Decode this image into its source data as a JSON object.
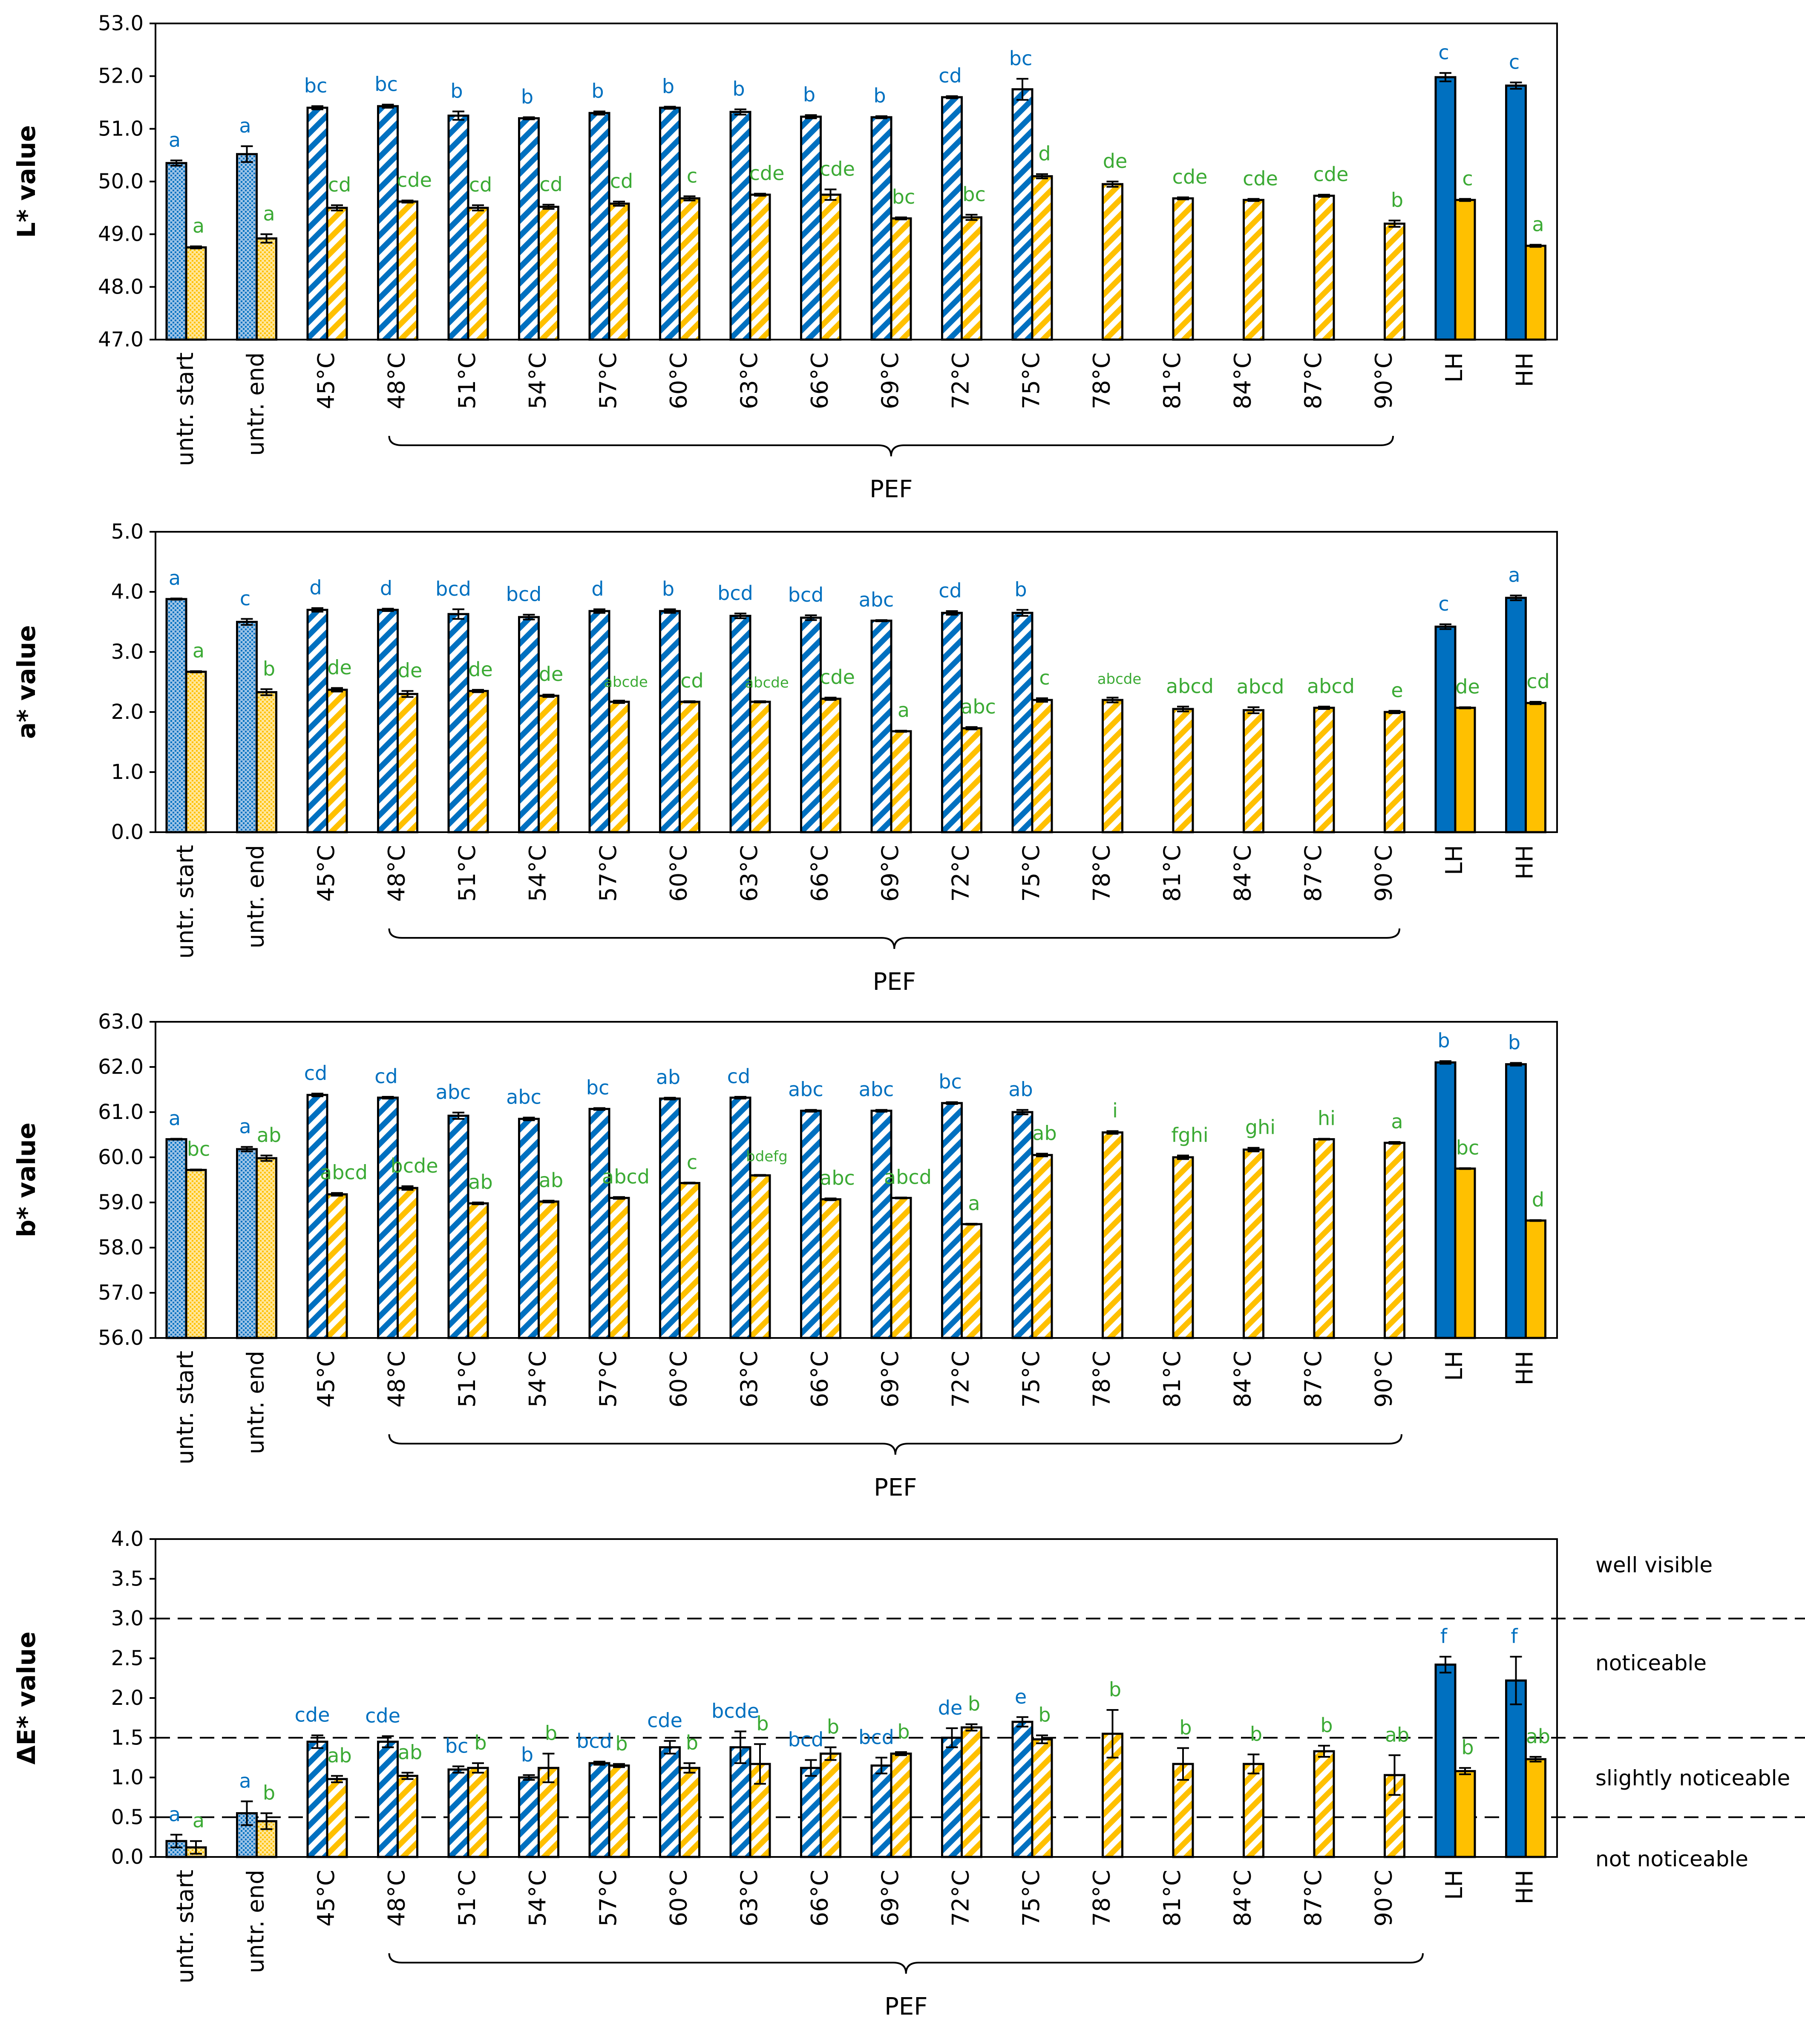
{
  "colors": {
    "blue": "#0070C0",
    "blue_light": "#9DC3E6",
    "yellow": "#FFC000",
    "yellow_light": "#FFE699",
    "green": "#3BAA34",
    "axis": "#000000"
  },
  "categories": [
    "untr. start",
    "untr. end",
    "45°C",
    "48°C",
    "51°C",
    "54°C",
    "57°C",
    "60°C",
    "63°C",
    "66°C",
    "69°C",
    "72°C",
    "75°C",
    "78°C",
    "81°C",
    "84°C",
    "87°C",
    "90°C",
    "LH",
    "HH"
  ],
  "group_label": "PEF",
  "thresholds": {
    "labels": [
      "well visible",
      "noticeable",
      "slightly noticeable",
      "not noticeable"
    ]
  },
  "chart_data": [
    {
      "type": "bar",
      "ylabel": "L* value",
      "ylim": [
        47,
        53
      ],
      "ytick_step": 1,
      "yticks": [
        "47.0",
        "48.0",
        "49.0",
        "50.0",
        "51.0",
        "52.0",
        "53.0"
      ],
      "series": [
        {
          "name": "blue",
          "values": [
            50.35,
            50.52,
            51.4,
            51.43,
            51.25,
            51.2,
            51.3,
            51.4,
            51.32,
            51.23,
            51.22,
            51.6,
            51.75,
            null,
            null,
            null,
            null,
            null,
            51.98,
            51.82
          ],
          "errors": [
            0.05,
            0.15,
            0.03,
            0.03,
            0.08,
            0.02,
            0.03,
            0.02,
            0.05,
            0.03,
            0.02,
            0.02,
            0.2,
            0,
            0,
            0,
            0,
            0,
            0.08,
            0.06
          ],
          "letters": [
            "a",
            "a",
            "bc",
            "bc",
            "b",
            "b",
            "b",
            "b",
            "b",
            "b",
            "b",
            "cd",
            "bc",
            "",
            "",
            "",
            "",
            "",
            "c",
            "c"
          ]
        },
        {
          "name": "yellow",
          "values": [
            48.75,
            48.92,
            49.5,
            49.62,
            49.5,
            49.52,
            49.58,
            49.68,
            49.75,
            49.75,
            49.3,
            49.32,
            50.1,
            49.95,
            49.68,
            49.65,
            49.73,
            49.2,
            49.65,
            48.78
          ],
          "errors": [
            0.02,
            0.08,
            0.05,
            0.02,
            0.05,
            0.04,
            0.04,
            0.04,
            0.02,
            0.1,
            0.02,
            0.05,
            0.04,
            0.05,
            0.02,
            0.02,
            0.02,
            0.06,
            0.02,
            0.02
          ],
          "letters": [
            "a",
            "a",
            "cd",
            "cde",
            "cd",
            "cd",
            "cd",
            "c",
            "cde",
            "cde",
            "bc",
            "bc",
            "d",
            "de",
            "cde",
            "cde",
            "cde",
            "b",
            "c",
            "a"
          ]
        }
      ]
    },
    {
      "type": "bar",
      "ylabel": "a* value",
      "ylim": [
        0,
        5
      ],
      "ytick_step": 1,
      "yticks": [
        "0.0",
        "1.0",
        "2.0",
        "3.0",
        "4.0",
        "5.0"
      ],
      "series": [
        {
          "name": "blue",
          "values": [
            3.88,
            3.5,
            3.7,
            3.7,
            3.63,
            3.58,
            3.68,
            3.68,
            3.6,
            3.57,
            3.52,
            3.65,
            3.65,
            null,
            null,
            null,
            null,
            null,
            3.42,
            3.9
          ],
          "errors": [
            0.01,
            0.05,
            0.03,
            0.02,
            0.08,
            0.04,
            0.03,
            0.03,
            0.04,
            0.04,
            0.01,
            0.03,
            0.05,
            0,
            0,
            0,
            0,
            0,
            0.04,
            0.04
          ],
          "letters": [
            "a",
            "c",
            "d",
            "d",
            "bcd",
            "bcd",
            "d",
            "b",
            "bcd",
            "bcd",
            "abc",
            "cd",
            "b",
            "",
            "",
            "",
            "",
            "",
            "c",
            "a"
          ]
        },
        {
          "name": "yellow",
          "values": [
            2.67,
            2.33,
            2.37,
            2.3,
            2.35,
            2.27,
            2.17,
            2.17,
            2.17,
            2.22,
            1.68,
            1.73,
            2.2,
            2.2,
            2.05,
            2.03,
            2.07,
            2.0,
            2.07,
            2.15
          ],
          "errors": [
            0.01,
            0.05,
            0.03,
            0.05,
            0.02,
            0.02,
            0.02,
            0.01,
            0.01,
            0.02,
            0.01,
            0.02,
            0.03,
            0.04,
            0.04,
            0.05,
            0.02,
            0.02,
            0.01,
            0.02
          ],
          "letters": [
            "a",
            "b",
            "de",
            "de",
            "de",
            "de",
            "abcde",
            "cd",
            "abcde",
            "cde",
            "a",
            "abc",
            "c",
            "abcde",
            "abcd",
            "abcd",
            "abcd",
            "e",
            "de",
            "cd"
          ]
        }
      ]
    },
    {
      "type": "bar",
      "ylabel": "b* value",
      "ylim": [
        56,
        63
      ],
      "ytick_step": 1,
      "yticks": [
        "56.0",
        "57.0",
        "58.0",
        "59.0",
        "60.0",
        "61.0",
        "62.0",
        "63.0"
      ],
      "series": [
        {
          "name": "blue",
          "values": [
            60.4,
            60.18,
            61.38,
            61.32,
            60.92,
            60.85,
            61.07,
            61.3,
            61.32,
            61.03,
            61.03,
            61.2,
            61.0,
            null,
            null,
            null,
            null,
            null,
            62.1,
            62.06
          ],
          "errors": [
            0.01,
            0.05,
            0.03,
            0.02,
            0.07,
            0.03,
            0.02,
            0.02,
            0.02,
            0.02,
            0.02,
            0.02,
            0.05,
            0,
            0,
            0,
            0,
            0,
            0.03,
            0.03
          ],
          "letters": [
            "a",
            "a",
            "cd",
            "cd",
            "abc",
            "abc",
            "bc",
            "ab",
            "cd",
            "abc",
            "abc",
            "bc",
            "ab",
            "",
            "",
            "",
            "",
            "",
            "b",
            "b"
          ]
        },
        {
          "name": "yellow",
          "values": [
            59.72,
            59.98,
            59.18,
            59.32,
            58.98,
            59.02,
            59.1,
            59.43,
            59.6,
            59.07,
            59.1,
            58.52,
            60.05,
            60.55,
            60.0,
            60.17,
            60.4,
            60.32,
            59.75,
            58.6
          ],
          "errors": [
            0.01,
            0.06,
            0.03,
            0.04,
            0.02,
            0.02,
            0.02,
            0.01,
            0.01,
            0.02,
            0.01,
            0.01,
            0.03,
            0.03,
            0.04,
            0.04,
            0.01,
            0.02,
            0.01,
            0.01
          ],
          "letters": [
            "bc",
            "ab",
            "abcd",
            "bcde",
            "ab",
            "ab",
            "abcd",
            "c",
            "bdefg",
            "abc",
            "abcd",
            "a",
            "ab",
            "i",
            "fghi",
            "ghi",
            "hi",
            "a",
            "bc",
            "d"
          ]
        }
      ]
    },
    {
      "type": "bar",
      "ylabel": "ΔE* value",
      "ylim": [
        0,
        4
      ],
      "ytick_step": 0.5,
      "yticks": [
        "0.0",
        "0.5",
        "1.0",
        "1.5",
        "2.0",
        "2.5",
        "3.0",
        "3.5",
        "4.0"
      ],
      "threshold_lines": [
        0.5,
        1.5,
        3.0
      ],
      "series": [
        {
          "name": "blue",
          "values": [
            0.2,
            0.55,
            1.45,
            1.45,
            1.1,
            1.0,
            1.18,
            1.38,
            1.38,
            1.12,
            1.15,
            1.5,
            1.7,
            null,
            null,
            null,
            null,
            null,
            2.42,
            2.22
          ],
          "errors": [
            0.08,
            0.15,
            0.08,
            0.07,
            0.04,
            0.03,
            0.02,
            0.08,
            0.2,
            0.1,
            0.1,
            0.12,
            0.06,
            0,
            0,
            0,
            0,
            0,
            0.1,
            0.3
          ],
          "letters": [
            "a",
            "a",
            "cde",
            "cde",
            "bc",
            "b",
            "bcd",
            "cde",
            "bcde",
            "bcd",
            "bcd",
            "de",
            "e",
            "",
            "",
            "",
            "",
            "",
            "f",
            "f"
          ]
        },
        {
          "name": "yellow",
          "values": [
            0.12,
            0.45,
            0.98,
            1.02,
            1.12,
            1.12,
            1.15,
            1.12,
            1.17,
            1.3,
            1.3,
            1.63,
            1.48,
            1.55,
            1.17,
            1.17,
            1.33,
            1.03,
            1.08,
            1.23
          ],
          "errors": [
            0.08,
            0.1,
            0.04,
            0.04,
            0.06,
            0.18,
            0.02,
            0.06,
            0.25,
            0.08,
            0.02,
            0.04,
            0.05,
            0.3,
            0.2,
            0.12,
            0.07,
            0.25,
            0.04,
            0.03
          ],
          "letters": [
            "a",
            "b",
            "ab",
            "ab",
            "b",
            "b",
            "b",
            "b",
            "b",
            "b",
            "b",
            "b",
            "b",
            "b",
            "b",
            "b",
            "b",
            "ab",
            "b",
            "ab"
          ]
        }
      ]
    }
  ]
}
